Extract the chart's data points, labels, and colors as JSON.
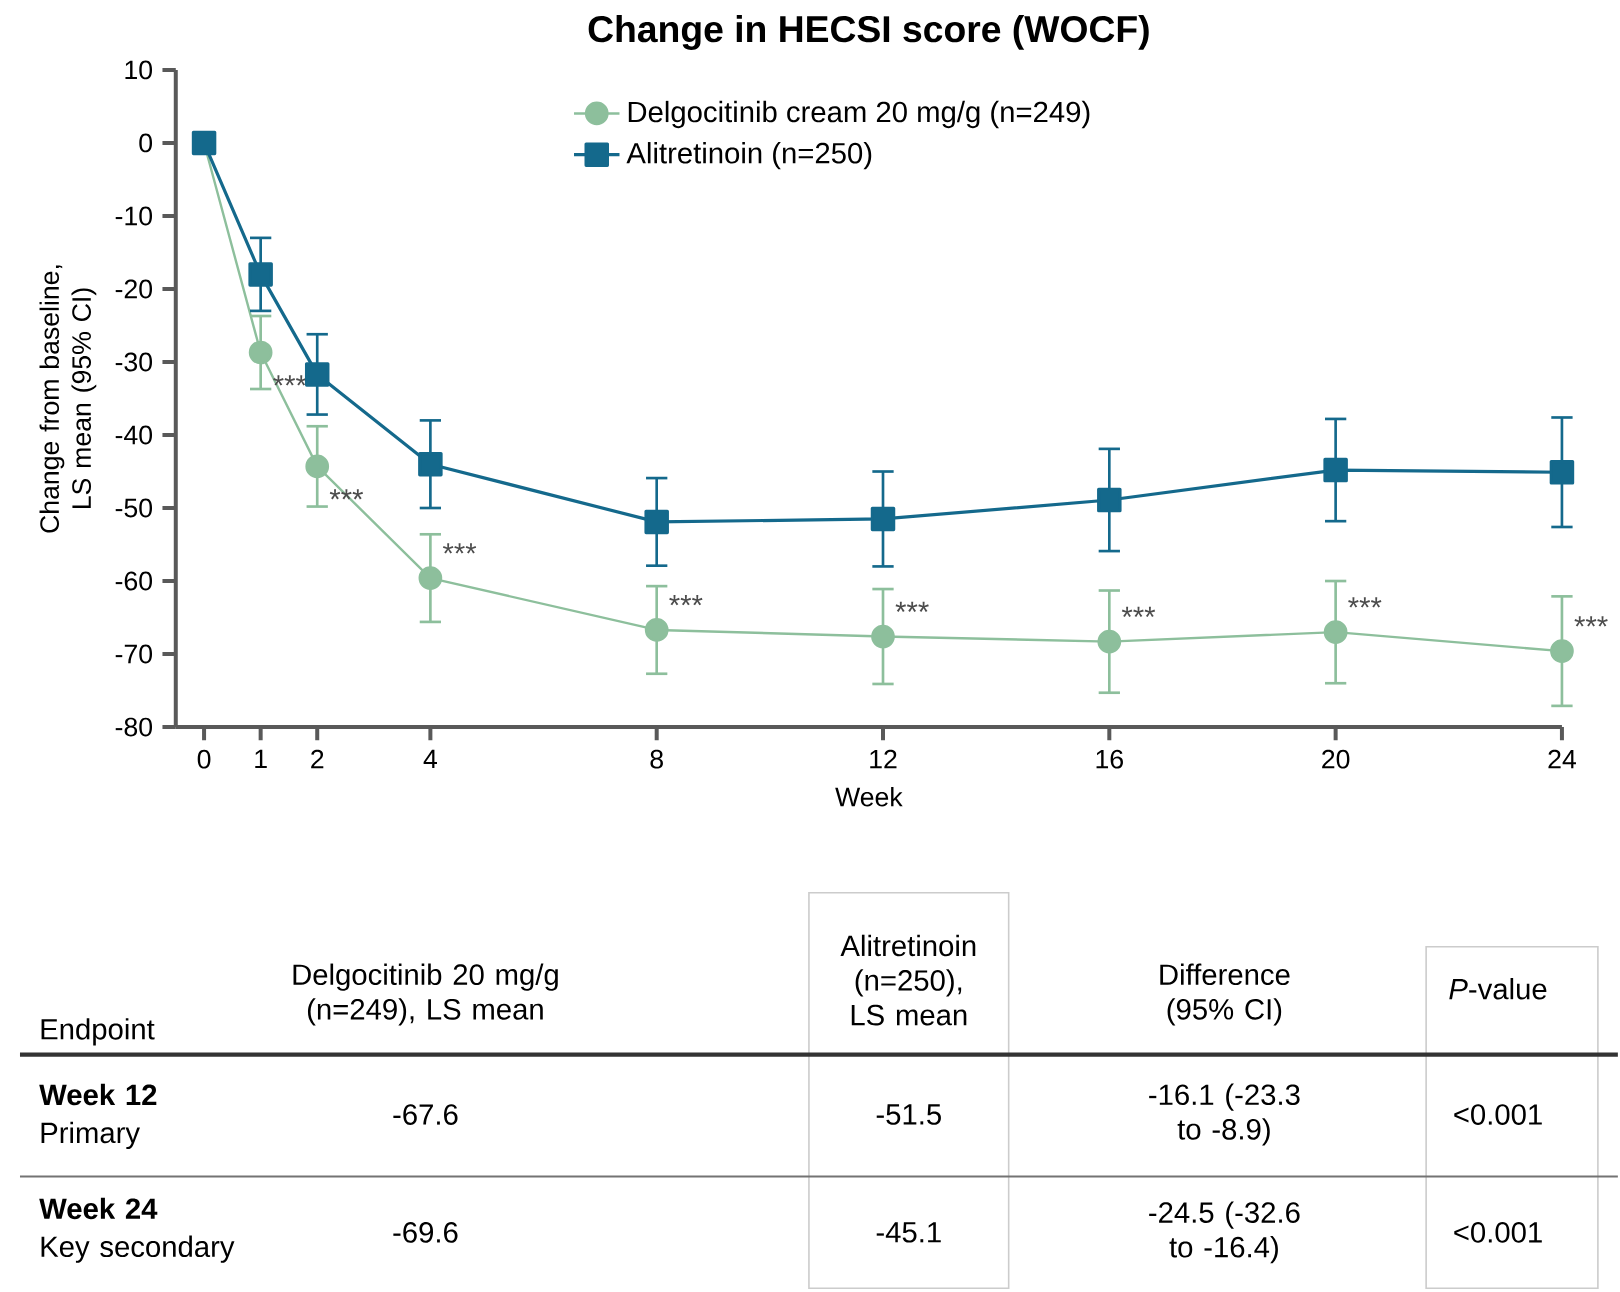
{
  "chart_data": {
    "type": "line",
    "title": "Change in HECSI score (WOCF)",
    "xlabel": "Week",
    "ylabel": "Change from baseline, LS mean (95% CI)",
    "x": [
      0,
      1,
      2,
      4,
      8,
      12,
      16,
      20,
      24
    ],
    "series": [
      {
        "name": "Delgocitinib cream 20 mg/g (n=249)",
        "color": "#8dbf9c",
        "marker": "circle",
        "values": [
          0,
          -28.7,
          -44.3,
          -59.6,
          -66.7,
          -67.6,
          -68.3,
          -67.0,
          -69.6
        ],
        "errors": [
          null,
          5,
          5.5,
          6,
          6,
          6.5,
          7,
          7,
          7.5
        ]
      },
      {
        "name": "Alitretinoin (n=250)",
        "color": "#14698c",
        "marker": "square",
        "values": [
          0,
          -18.0,
          -31.7,
          -44.0,
          -51.9,
          -51.5,
          -48.9,
          -44.8,
          -45.1
        ],
        "errors": [
          null,
          5,
          5.5,
          6,
          6,
          6.5,
          7,
          7,
          7.5
        ]
      }
    ],
    "xlim": [
      -0.5,
      24
    ],
    "ylim": [
      -80,
      10
    ],
    "xticks": [
      0,
      1,
      2,
      4,
      8,
      12,
      16,
      20,
      24
    ],
    "yticks": [
      -80,
      -70,
      -60,
      -50,
      -40,
      -30,
      -20,
      -10,
      0,
      10
    ],
    "grid": false,
    "legend": "top",
    "line_style": "solid",
    "annotations": [
      {
        "text": "***",
        "x": 1,
        "y": -28.7
      },
      {
        "text": "***",
        "x": 2,
        "y": -44.3
      },
      {
        "text": "***",
        "x": 4,
        "y": -59.6
      },
      {
        "text": "***",
        "x": 8,
        "y": -66.7
      },
      {
        "text": "***",
        "x": 12,
        "y": -67.6
      },
      {
        "text": "***",
        "x": 16,
        "y": -68.3
      },
      {
        "text": "***",
        "x": 20,
        "y": -67.0
      },
      {
        "text": "***",
        "x": 24,
        "y": -69.6
      },
      "Delgocitinib 20 mg/g (n=249), LS mean",
      "Alitretinoin (n=250), LS mean",
      "Difference (95% CI)",
      "*P*-value",
      "Endpoint",
      "Week 12",
      "Primary",
      "-67.6",
      "-51.5",
      "-16.1 (-23.3 to -8.9)",
      "<0.001",
      "Week 24",
      "Key secondary",
      "-69.6",
      "-45.1",
      "-24.5 (-32.6 to -16.4)",
      "<0.001"
    ]
  }
}
